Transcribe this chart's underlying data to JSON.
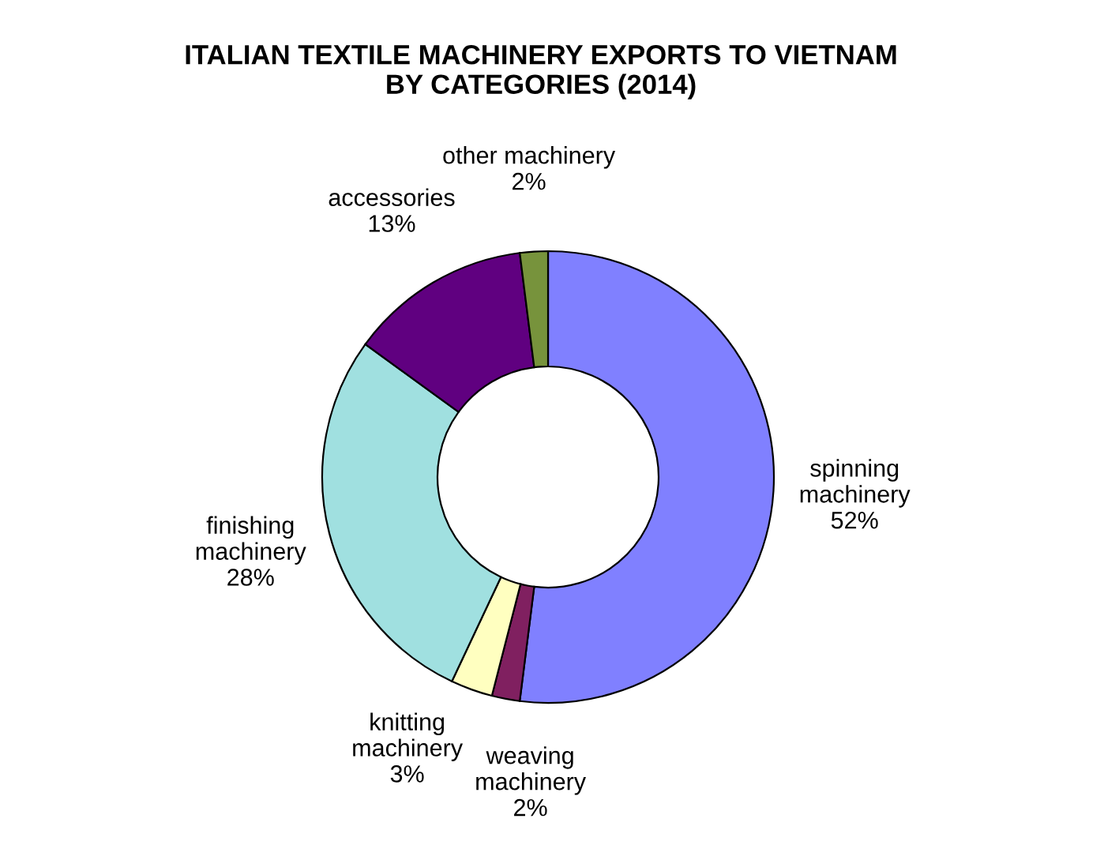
{
  "chart_data": {
    "type": "donut",
    "title": "ITALIAN TEXTILE MACHINERY EXPORTS TO VIETNAM\nBY CATEGORIES (2014)",
    "categories": [
      "spinning\nmachinery",
      "weaving\nmachinery",
      "knitting\nmachinery",
      "finishing\nmachinery",
      "accessories",
      "other machinery"
    ],
    "values": [
      52,
      2,
      3,
      28,
      13,
      2
    ],
    "value_labels": [
      "52%",
      "2%",
      "3%",
      "28%",
      "13%",
      "2%"
    ],
    "colors": [
      "#8080ff",
      "#802060",
      "#ffffc0",
      "#a0e0e0",
      "#600080",
      "#77933c"
    ],
    "legend": false
  }
}
